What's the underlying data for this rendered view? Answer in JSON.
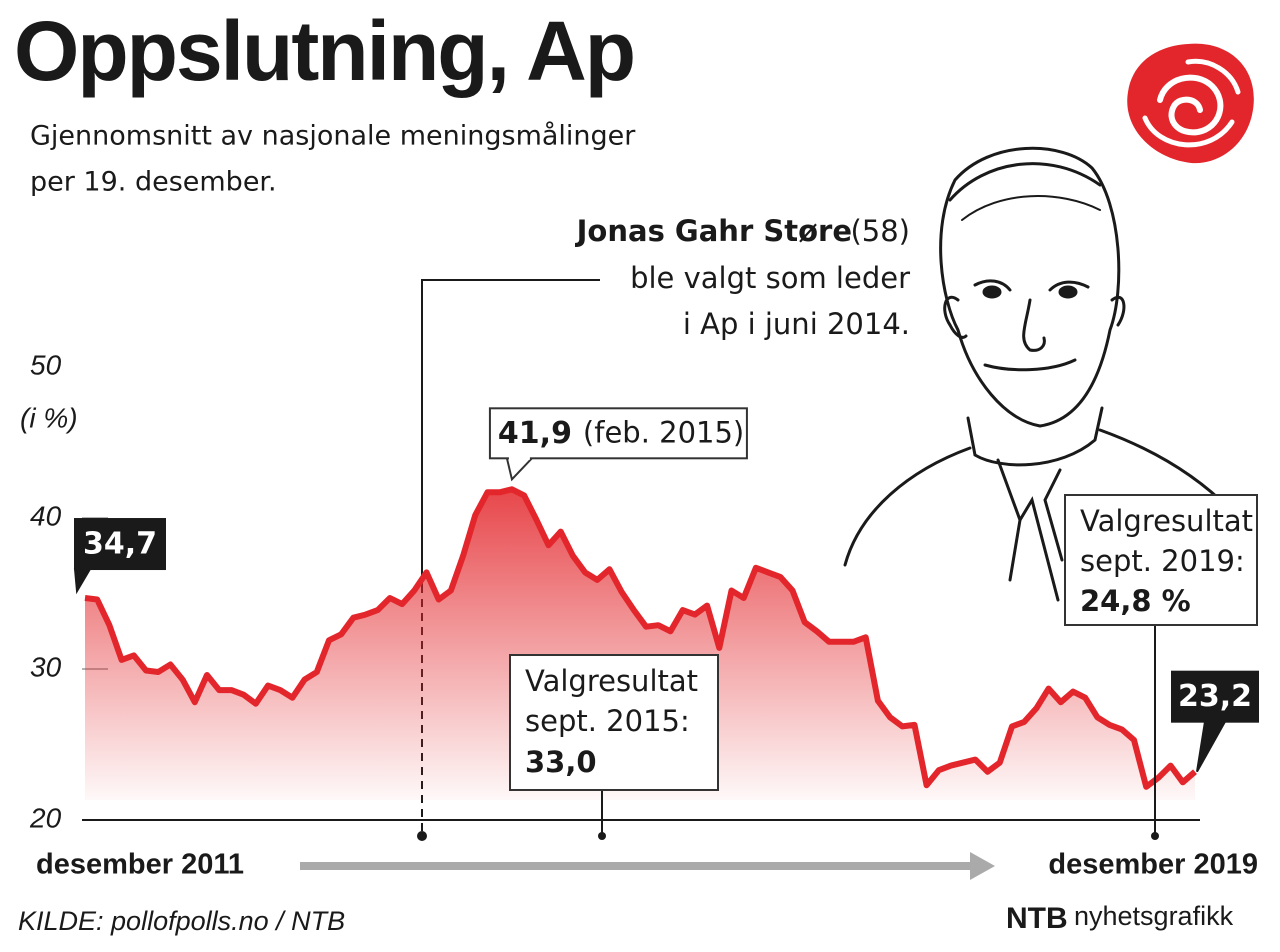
{
  "chart_data": {
    "type": "line",
    "title": "Oppslutning, Ap",
    "subtitle": [
      "Gjennomsnitt av nasjonale meningsmålinger",
      "per 19. desember."
    ],
    "y_unit_label": "(i %)",
    "x_label_start": "desember 2011",
    "x_label_end": "desember 2019",
    "values": [
      34.7,
      34.6,
      32.9,
      30.6,
      30.9,
      29.9,
      29.8,
      30.3,
      29.3,
      27.8,
      29.6,
      28.6,
      28.6,
      28.3,
      27.7,
      28.9,
      28.6,
      28.1,
      29.3,
      29.8,
      31.9,
      32.3,
      33.4,
      33.6,
      33.9,
      34.7,
      34.3,
      35.2,
      36.4,
      34.6,
      35.2,
      37.5,
      40.2,
      41.7,
      41.7,
      41.9,
      41.5,
      39.9,
      38.2,
      39.1,
      37.5,
      36.4,
      35.9,
      36.6,
      35.1,
      33.9,
      32.8,
      32.9,
      32.5,
      33.9,
      33.6,
      34.2,
      31.4,
      35.2,
      34.7,
      36.7,
      36.4,
      36.1,
      35.2,
      33.1,
      32.5,
      31.8,
      31.8,
      31.8,
      32.1,
      27.9,
      26.8,
      26.2,
      26.3,
      22.3,
      23.3,
      23.6,
      23.8,
      24.0,
      23.2,
      23.8,
      26.2,
      26.5,
      27.4,
      28.7,
      27.8,
      28.5,
      28.1,
      26.8,
      26.3,
      26.0,
      25.3,
      22.2,
      22.8,
      23.6,
      22.5,
      23.2
    ],
    "value_labels": [
      "34,7",
      null,
      null,
      null,
      null,
      null,
      null,
      null,
      null,
      null,
      null,
      null,
      null,
      null,
      null,
      null,
      null,
      null,
      null,
      null,
      null,
      null,
      null,
      null,
      null,
      null,
      null,
      null,
      null,
      null,
      null,
      null,
      null,
      null,
      null,
      "41,9",
      null,
      null,
      null,
      null,
      null,
      null,
      null,
      null,
      null,
      null,
      null,
      null,
      null,
      null,
      null,
      null,
      null,
      null,
      null,
      null,
      null,
      null,
      null,
      null,
      null,
      null,
      null,
      null,
      null,
      null,
      null,
      null,
      null,
      null,
      null,
      null,
      null,
      null,
      null,
      null,
      null,
      null,
      null,
      null,
      null,
      null,
      null,
      null,
      null,
      null,
      null,
      null,
      null,
      null,
      null,
      "23,2"
    ],
    "color": "#e3262b",
    "ylim": [
      20,
      50
    ],
    "yticks": [
      20,
      30,
      40,
      50
    ],
    "annotations": {
      "peak_note": "(feb. 2015)",
      "leader": {
        "name": "Jonas Gahr Støre",
        "age": "(58)",
        "lines": [
          "ble valgt som leder",
          "i Ap i juni 2014."
        ]
      },
      "result_2015": {
        "lines": [
          "Valgresultat",
          "sept. 2015:"
        ],
        "value": "33,0"
      },
      "result_2019": {
        "lines": [
          "Valgresultat",
          "sept. 2019:"
        ],
        "value": "24,8 %"
      }
    },
    "source": "KILDE: pollofpolls.no / NTB",
    "credit": {
      "logo": "NTB",
      "text": "nyhetsgrafikk"
    }
  }
}
